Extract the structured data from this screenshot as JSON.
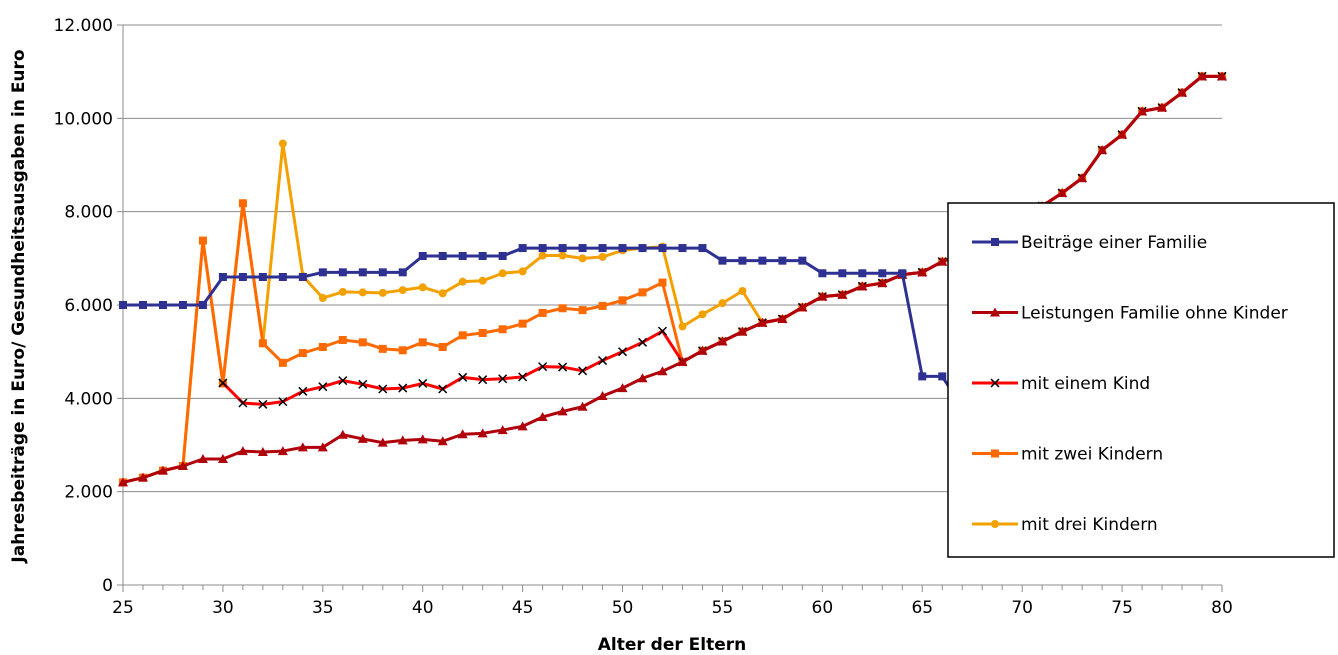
{
  "chart_data": {
    "type": "line",
    "title": "",
    "xlabel": "Alter der Eltern",
    "ylabel": "Jahresbeiträge in Euro/ Gesundheitsausgaben in Euro",
    "xlim": [
      25,
      80
    ],
    "ylim": [
      0,
      12000
    ],
    "x_ticks": [
      25,
      30,
      35,
      40,
      45,
      50,
      55,
      60,
      65,
      70,
      75,
      80
    ],
    "x_tick_labels": [
      "25",
      "30",
      "35",
      "40",
      "45",
      "50",
      "55",
      "60",
      "65",
      "70",
      "75",
      "80"
    ],
    "y_ticks": [
      0,
      2000,
      4000,
      6000,
      8000,
      10000,
      12000
    ],
    "y_tick_labels": [
      "0",
      "2.000",
      "4.000",
      "6.000",
      "8.000",
      "10.000",
      "12.000"
    ],
    "grid": "horizontal",
    "legend_position": "right",
    "x": [
      25,
      26,
      27,
      28,
      29,
      30,
      31,
      32,
      33,
      34,
      35,
      36,
      37,
      38,
      39,
      40,
      41,
      42,
      43,
      44,
      45,
      46,
      47,
      48,
      49,
      50,
      51,
      52,
      53,
      54,
      55,
      56,
      57,
      58,
      59,
      60,
      61,
      62,
      63,
      64,
      65,
      66,
      67,
      68,
      69,
      70,
      71,
      72,
      73,
      74,
      75,
      76,
      77,
      78,
      79,
      80
    ],
    "series": [
      {
        "name": "Beiträge einer Familie",
        "color": "#2E3192",
        "marker": "square",
        "values": [
          6000,
          6000,
          6000,
          6000,
          6000,
          6600,
          6600,
          6600,
          6600,
          6600,
          6700,
          6700,
          6700,
          6700,
          6700,
          7050,
          7050,
          7050,
          7050,
          7050,
          7220,
          7220,
          7220,
          7220,
          7220,
          7220,
          7220,
          7220,
          7220,
          7220,
          6950,
          6950,
          6950,
          6950,
          6950,
          6680,
          6680,
          6680,
          6680,
          6680,
          4470,
          4470,
          3800,
          3800,
          null,
          null,
          null,
          null,
          null,
          null,
          null,
          null,
          null,
          null,
          null,
          null
        ]
      },
      {
        "name": "Leistungen Familie ohne Kinder",
        "color": "#B0000A",
        "marker": "triangle",
        "values": [
          2200,
          2300,
          2450,
          2550,
          2700,
          2700,
          2870,
          2850,
          2870,
          2950,
          2950,
          3220,
          3130,
          3050,
          3100,
          3120,
          3080,
          3230,
          3250,
          3320,
          3400,
          3600,
          3720,
          3820,
          4050,
          4220,
          4430,
          4580,
          4780,
          5020,
          5220,
          5430,
          5620,
          5700,
          5950,
          6180,
          6220,
          6400,
          6470,
          6650,
          6700,
          6930,
          7100,
          7350,
          7600,
          7850,
          8120,
          8400,
          8720,
          9320,
          9650,
          10150,
          10230,
          10550,
          10900,
          10900
        ]
      },
      {
        "name": "mit einem Kind",
        "color": "#FF0000",
        "marker": "x",
        "values": [
          null,
          null,
          null,
          null,
          null,
          4330,
          3900,
          3870,
          3930,
          4150,
          4250,
          4380,
          4300,
          4200,
          4220,
          4320,
          4200,
          4450,
          4400,
          4420,
          4460,
          4680,
          4670,
          4590,
          4810,
          5000,
          5200,
          5440,
          4780,
          5020,
          5220,
          5430,
          5620,
          5700,
          5950,
          6180,
          6220,
          6400,
          6470,
          6650,
          6700,
          6930,
          7100,
          7350,
          7600,
          7850,
          8120,
          8400,
          8720,
          9320,
          9650,
          10150,
          10230,
          10550,
          10900,
          10900
        ]
      },
      {
        "name": "mit zwei Kindern",
        "color": "#FF6A00",
        "marker": "square",
        "values": [
          2200,
          2300,
          2450,
          2550,
          7380,
          4320,
          8180,
          5180,
          4760,
          4970,
          5100,
          5250,
          5200,
          5060,
          5030,
          5200,
          5100,
          5350,
          5400,
          5480,
          5600,
          5830,
          5930,
          5890,
          5980,
          6100,
          6270,
          6480,
          4780,
          5020,
          5220,
          5430,
          5620,
          5700,
          5950,
          6180,
          6220,
          6400,
          6470,
          6650,
          6700,
          6930,
          7100,
          7350,
          7600,
          7850,
          8120,
          8400,
          8720,
          9320,
          9650,
          10150,
          10230,
          10550,
          10900,
          10900
        ]
      },
      {
        "name": "mit drei Kindern",
        "color": "#F2A100",
        "marker": "circle",
        "values": [
          2200,
          2300,
          2450,
          2550,
          7380,
          4320,
          8180,
          5180,
          9460,
          6620,
          6150,
          6280,
          6270,
          6260,
          6320,
          6380,
          6250,
          6500,
          6520,
          6680,
          6720,
          7060,
          7060,
          7000,
          7030,
          7170,
          7220,
          7250,
          5540,
          5800,
          6040,
          6300,
          5620,
          5700,
          5950,
          6180,
          6220,
          6400,
          6470,
          6650,
          6700,
          6930,
          7100,
          7350,
          7600,
          7850,
          8120,
          8400,
          8720,
          9320,
          9650,
          10150,
          10230,
          10550,
          10900,
          10900
        ]
      }
    ]
  }
}
